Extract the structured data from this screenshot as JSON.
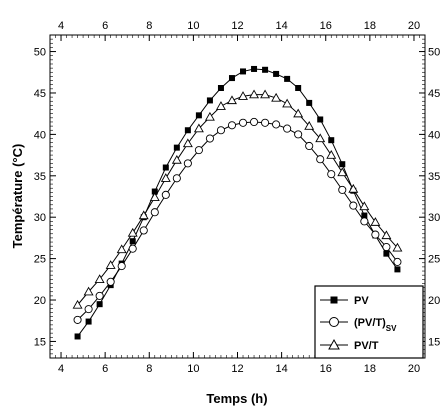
{
  "chart_data": {
    "type": "line",
    "xlabel": "Temps (h)",
    "ylabel": "Température (°C)",
    "xlim": [
      3.5,
      20.5
    ],
    "ylim": [
      13,
      52
    ],
    "x_ticks": [
      4,
      6,
      8,
      10,
      12,
      14,
      16,
      18,
      20
    ],
    "y_ticks": [
      15,
      20,
      25,
      30,
      35,
      40,
      45,
      50
    ],
    "x_tick_labels": [
      "4",
      "6",
      "8",
      "10",
      "12",
      "14",
      "16",
      "18",
      "20"
    ],
    "y_tick_labels": [
      "15",
      "20",
      "25",
      "30",
      "35",
      "40",
      "45",
      "50"
    ],
    "right_tick_labels": [
      "15",
      "20",
      "25",
      "30",
      "35",
      "40",
      "45",
      "50"
    ],
    "grid": false,
    "legend_position": "bottom-right",
    "x": [
      4.75,
      5.25,
      5.75,
      6.25,
      6.75,
      7.25,
      7.75,
      8.25,
      8.75,
      9.25,
      9.75,
      10.25,
      10.75,
      11.25,
      11.75,
      12.25,
      12.75,
      13.25,
      13.75,
      14.25,
      14.75,
      15.25,
      15.75,
      16.25,
      16.75,
      17.25,
      17.75,
      18.25,
      18.75,
      19.25
    ],
    "series": [
      {
        "name": "PV",
        "marker": "filled-square",
        "values": [
          15.6,
          17.4,
          19.5,
          21.8,
          24.4,
          27.1,
          30.0,
          33.1,
          36.0,
          38.4,
          40.5,
          42.3,
          44.1,
          45.6,
          46.8,
          47.6,
          47.9,
          47.8,
          47.3,
          46.7,
          45.6,
          43.8,
          41.8,
          39.3,
          36.4,
          33.2,
          30.2,
          27.8,
          25.6,
          23.7
        ]
      },
      {
        "name_main": "(PV/T)",
        "name_sub": "SV",
        "marker": "open-circle",
        "values": [
          17.6,
          18.9,
          20.5,
          22.2,
          24.1,
          26.2,
          28.4,
          30.6,
          32.7,
          34.7,
          36.5,
          38.1,
          39.5,
          40.5,
          41.1,
          41.4,
          41.5,
          41.4,
          41.2,
          40.7,
          40.0,
          38.6,
          37.0,
          35.2,
          33.3,
          31.4,
          29.5,
          27.9,
          26.4,
          24.6
        ]
      },
      {
        "name": "PV/T",
        "marker": "open-triangle",
        "values": [
          19.4,
          21.0,
          22.5,
          24.2,
          26.1,
          28.1,
          30.2,
          32.4,
          34.7,
          36.9,
          38.9,
          40.7,
          42.1,
          43.4,
          44.1,
          44.6,
          44.8,
          44.8,
          44.4,
          43.7,
          42.5,
          41.0,
          39.5,
          37.5,
          35.4,
          33.4,
          31.3,
          29.4,
          27.8,
          26.3
        ]
      }
    ]
  }
}
